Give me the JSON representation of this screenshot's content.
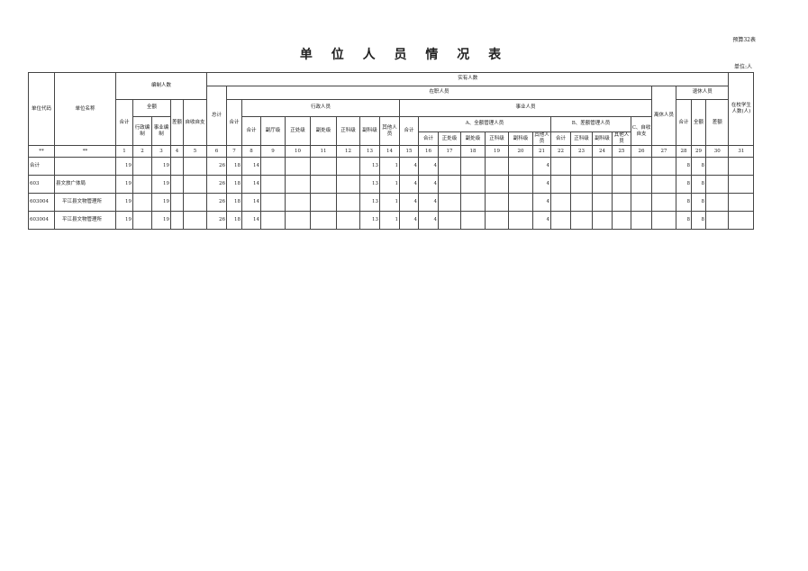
{
  "title": "单 位 人 员 情 况 表",
  "form_code": "预算32表",
  "unit_label": "单位:人",
  "headers": {
    "unit_code": "单位代码",
    "unit_name": "单位名称",
    "bianzhi": "编制人数",
    "shiyou": "实有人数",
    "students": "在校学生人数(人)",
    "total": "总计",
    "zaizhi": "在职人员",
    "lixiu": "离休人员",
    "tuixiu": "退休人员",
    "heji": "合计",
    "quane": "全额",
    "chae": "差额",
    "zishou": "自收自支",
    "xingzheng_bz": "行政编制",
    "shiye_bz": "事业编制",
    "xingzheng": "行政人员",
    "shiye": "事业人员",
    "xz_subs": [
      "合计",
      "副厅级",
      "正处级",
      "副处级",
      "正科级",
      "副科级",
      "其他人员"
    ],
    "a_group": "A、全额管理人员",
    "a_subs": [
      "合计",
      "正处级",
      "副处级",
      "正科级",
      "副科级",
      "其他人员"
    ],
    "b_group": "B、差额管理人员",
    "b_subs": [
      "合计",
      "正科级",
      "副科级",
      "其他人员"
    ],
    "c_group": "C、自收自支"
  },
  "number_row": [
    "**",
    "**",
    "1",
    "2",
    "3",
    "4",
    "5",
    "6",
    "7",
    "8",
    "9",
    "10",
    "11",
    "12",
    "13",
    "14",
    "15",
    "16",
    "17",
    "18",
    "19",
    "20",
    "21",
    "22",
    "23",
    "24",
    "25",
    "26",
    "27",
    "28",
    "29",
    "30",
    "31"
  ],
  "rows": [
    {
      "code": "合计",
      "name": "",
      "v": [
        "19",
        "",
        "19",
        "",
        "",
        "26",
        "18",
        "14",
        "",
        "",
        "",
        "",
        "13",
        "1",
        "4",
        "4",
        "",
        "",
        "",
        "",
        "4",
        "",
        "",
        "",
        "",
        "",
        "",
        "8",
        "8",
        "",
        ""
      ]
    },
    {
      "code": "603",
      "name": "县文旅广体局",
      "v": [
        "19",
        "",
        "19",
        "",
        "",
        "26",
        "18",
        "14",
        "",
        "",
        "",
        "",
        "13",
        "1",
        "4",
        "4",
        "",
        "",
        "",
        "",
        "4",
        "",
        "",
        "",
        "",
        "",
        "",
        "8",
        "8",
        "",
        ""
      ]
    },
    {
      "code": "603004",
      "name": "平江县文物管理所",
      "v": [
        "19",
        "",
        "19",
        "",
        "",
        "26",
        "18",
        "14",
        "",
        "",
        "",
        "",
        "13",
        "1",
        "4",
        "4",
        "",
        "",
        "",
        "",
        "4",
        "",
        "",
        "",
        "",
        "",
        "",
        "8",
        "8",
        "",
        ""
      ]
    },
    {
      "code": "603004",
      "name": "平江县文物管理所",
      "v": [
        "19",
        "",
        "19",
        "",
        "",
        "26",
        "18",
        "14",
        "",
        "",
        "",
        "",
        "13",
        "1",
        "4",
        "4",
        "",
        "",
        "",
        "",
        "4",
        "",
        "",
        "",
        "",
        "",
        "",
        "8",
        "8",
        "",
        ""
      ]
    }
  ]
}
